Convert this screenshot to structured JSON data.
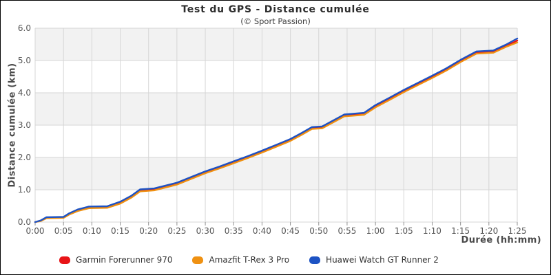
{
  "chart": {
    "title": "Test du GPS - Distance cumulée",
    "subtitle": "(© Sport Passion)",
    "xlabel": "Durée (hh:mm)",
    "ylabel": "Distance cumulée (km)"
  },
  "legend": {
    "items": [
      {
        "label": "Garmin Forerunner 970",
        "color": "#e81417"
      },
      {
        "label": "Amazfit T-Rex 3 Pro",
        "color": "#ef9112"
      },
      {
        "label": "Huawei Watch GT Runner 2",
        "color": "#1d53c4"
      }
    ]
  },
  "chart_data": {
    "type": "line",
    "title": "Test du GPS - Distance cumulée",
    "subtitle": "(© Sport Passion)",
    "xlabel": "Durée (hh:mm)",
    "ylabel": "Distance cumulée (km)",
    "x_unit": "minutes",
    "xlim_minutes": [
      0,
      85
    ],
    "ylim": [
      0,
      6
    ],
    "grid": true,
    "band_fill": "#f2f2f2",
    "grid_color": "#d6d6d6",
    "tick_color": "#8f8f8f",
    "x_ticks": [
      "0:00",
      "0:05",
      "0:10",
      "0:15",
      "0:20",
      "0:25",
      "0:30",
      "0:35",
      "0:40",
      "0:45",
      "0:50",
      "0:55",
      "1:00",
      "1:05",
      "1:10",
      "1:15",
      "1:20",
      "1:25"
    ],
    "x_tick_minutes": [
      0,
      5,
      10,
      15,
      20,
      25,
      30,
      35,
      40,
      45,
      50,
      55,
      60,
      65,
      70,
      75,
      80,
      85
    ],
    "y_ticks": [
      "0.0",
      "1.0",
      "2.0",
      "3.0",
      "4.0",
      "5.0",
      "6.0"
    ],
    "y_tick_values": [
      0,
      1,
      2,
      3,
      4,
      5,
      6
    ],
    "x": [
      0,
      1,
      2,
      5,
      6,
      7.5,
      9.5,
      12.7,
      15,
      17,
      18.5,
      21,
      23,
      25,
      27,
      30,
      32.5,
      35,
      37.5,
      40,
      42.5,
      45,
      47,
      48.8,
      50.6,
      52.5,
      54.5,
      58,
      60,
      62.5,
      65,
      67.5,
      70,
      72.5,
      75,
      77.8,
      80.8,
      83,
      85
    ],
    "series": [
      {
        "name": "Garmin Forerunner 970",
        "color": "#e81417",
        "values": [
          0,
          0.04,
          0.13,
          0.14,
          0.25,
          0.36,
          0.45,
          0.46,
          0.6,
          0.79,
          0.97,
          1.0,
          1.09,
          1.18,
          1.32,
          1.53,
          1.68,
          1.84,
          2.0,
          2.17,
          2.35,
          2.53,
          2.72,
          2.9,
          2.92,
          3.1,
          3.29,
          3.34,
          3.58,
          3.81,
          4.05,
          4.27,
          4.49,
          4.72,
          4.98,
          5.24,
          5.27,
          5.44,
          5.62
        ]
      },
      {
        "name": "Amazfit T-Rex 3 Pro",
        "color": "#ef9112",
        "values": [
          0,
          0.03,
          0.12,
          0.13,
          0.23,
          0.34,
          0.43,
          0.44,
          0.57,
          0.76,
          0.95,
          0.98,
          1.07,
          1.16,
          1.3,
          1.51,
          1.66,
          1.82,
          1.98,
          2.15,
          2.33,
          2.51,
          2.7,
          2.88,
          2.9,
          3.08,
          3.27,
          3.32,
          3.55,
          3.78,
          4.02,
          4.24,
          4.46,
          4.69,
          4.95,
          5.21,
          5.24,
          5.42,
          5.56
        ]
      },
      {
        "name": "Huawei Watch GT Runner 2",
        "color": "#1d53c4",
        "values": [
          0,
          0.05,
          0.15,
          0.16,
          0.27,
          0.39,
          0.48,
          0.49,
          0.63,
          0.82,
          1.01,
          1.04,
          1.13,
          1.22,
          1.36,
          1.57,
          1.72,
          1.88,
          2.04,
          2.21,
          2.39,
          2.57,
          2.76,
          2.94,
          2.96,
          3.14,
          3.33,
          3.38,
          3.62,
          3.85,
          4.09,
          4.31,
          4.53,
          4.76,
          5.02,
          5.28,
          5.31,
          5.49,
          5.68
        ]
      }
    ]
  }
}
